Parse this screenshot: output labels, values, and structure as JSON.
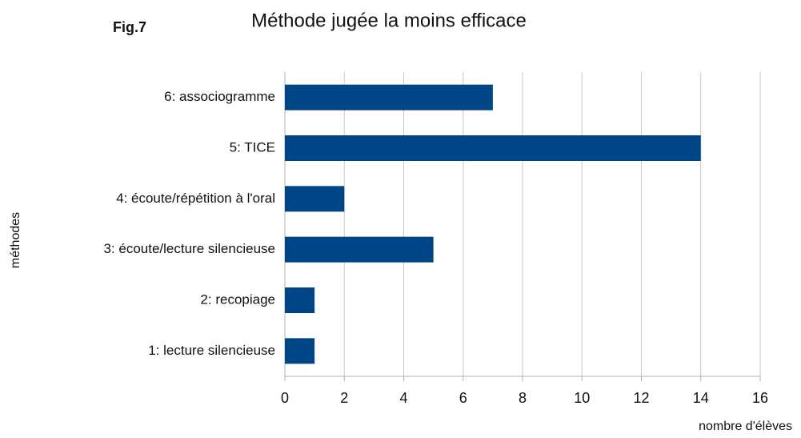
{
  "chart_data": {
    "type": "bar",
    "orientation": "horizontal",
    "figure_label": "Fig.7",
    "title": "Méthode jugée la moins efficace",
    "categories": [
      "6: associogramme",
      "5: TICE",
      "4: écoute/répétition à l'oral",
      "3: écoute/lecture silencieuse",
      "2: recopiage",
      "1: lecture silencieuse"
    ],
    "values": [
      7,
      14,
      2,
      5,
      1,
      1
    ],
    "color": "#004586",
    "xlim": [
      0,
      16
    ],
    "xticks": [
      0,
      2,
      4,
      6,
      8,
      10,
      12,
      14,
      16
    ],
    "xlabel": "nombre d'élèves",
    "ylabel": "méthodes",
    "grid": true
  }
}
